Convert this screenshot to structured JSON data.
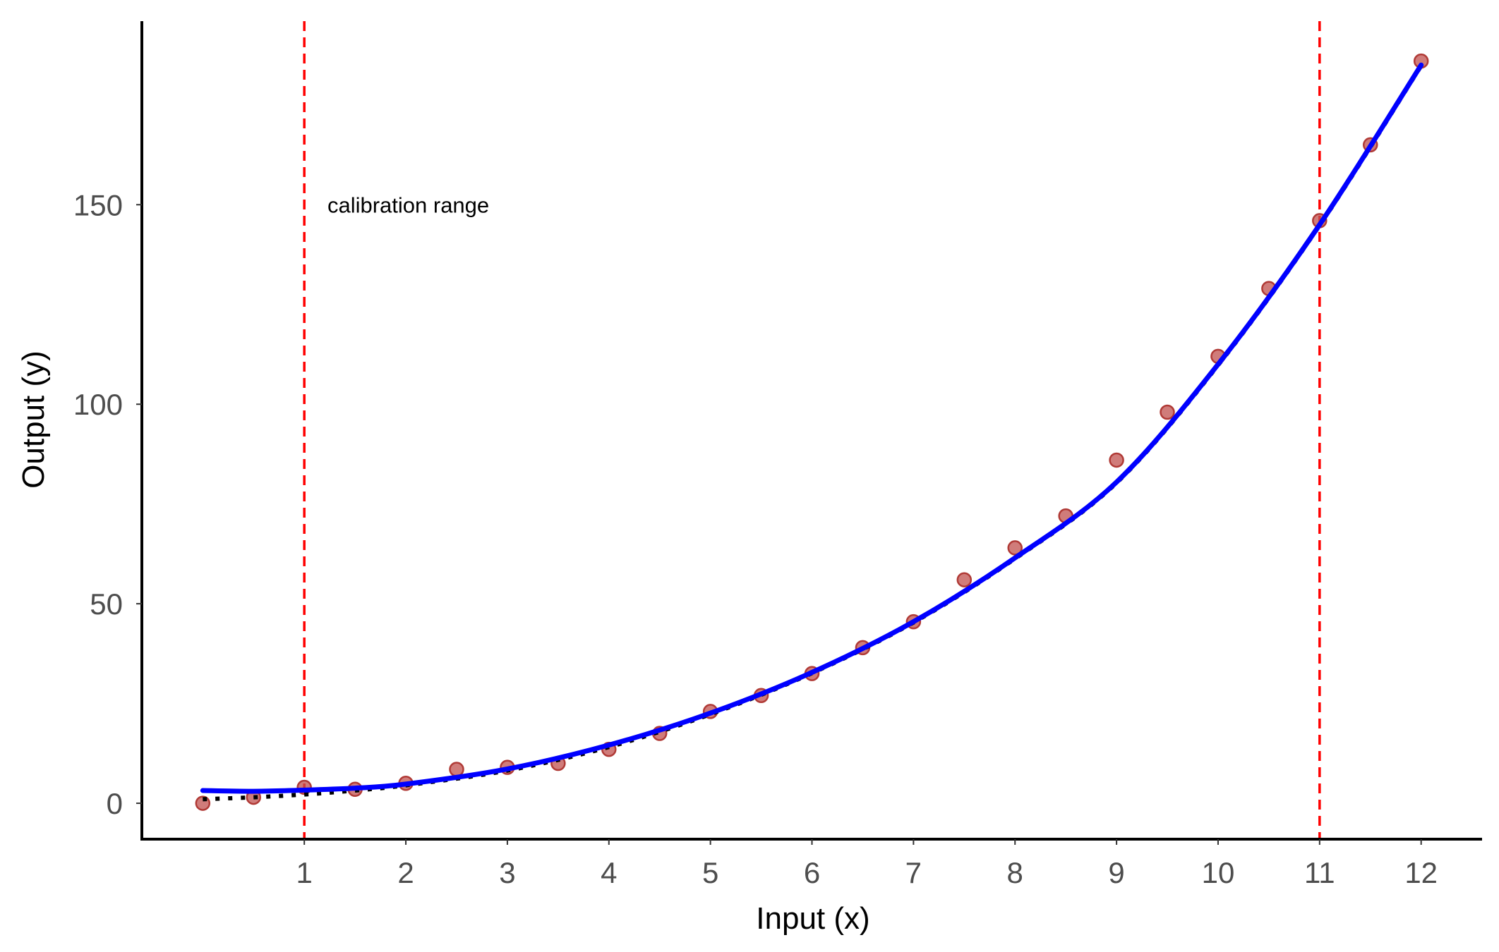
{
  "chart_data": {
    "type": "scatter",
    "title": "",
    "xlabel": "Input (x)",
    "ylabel": "Output (y)",
    "xlim": [
      -0.6,
      12.6
    ],
    "ylim": [
      -9,
      196
    ],
    "x_ticks": [
      1,
      2,
      3,
      4,
      5,
      6,
      7,
      8,
      9,
      10,
      11,
      12
    ],
    "y_ticks": [
      0,
      50,
      100,
      150
    ],
    "grid": false,
    "legend": "none",
    "points": {
      "color": "#c0504d",
      "x": [
        0,
        0.5,
        1,
        1.5,
        2,
        2.5,
        3,
        3.5,
        4,
        4.5,
        5,
        5.5,
        6,
        6.5,
        7,
        7.5,
        8,
        8.5,
        9,
        9.5,
        10,
        10.5,
        11,
        11.5,
        12
      ],
      "y": [
        0,
        1.5,
        4,
        3.5,
        5,
        8.5,
        9,
        10,
        13.5,
        17.5,
        23,
        27,
        32.5,
        39,
        45.5,
        56,
        64,
        72,
        86,
        98,
        112,
        129,
        146,
        165,
        186
      ]
    },
    "fitted_curve": {
      "color": "#0000ff",
      "x": [
        0,
        0.5,
        1,
        1.5,
        2,
        3,
        4,
        5,
        6,
        7,
        8,
        9,
        10,
        11,
        12
      ],
      "y": [
        3.2,
        3,
        3.3,
        3.8,
        4.8,
        8.6,
        14.6,
        22.6,
        32.8,
        45.5,
        61.5,
        80.5,
        110,
        145,
        185
      ]
    },
    "dotted_curve": {
      "color": "#000000",
      "x": [
        0,
        0.5,
        1,
        1.5,
        2,
        3,
        4,
        5,
        6,
        7,
        8,
        9,
        10,
        11,
        12
      ],
      "y": [
        1,
        1.5,
        2.2,
        3.2,
        4.5,
        8.2,
        14.1,
        22.3,
        32.6,
        45.3,
        61.3,
        80.3,
        109.8,
        144.8,
        184.8
      ]
    },
    "vertical_lines": {
      "color": "#ff0000",
      "x": [
        1,
        11
      ]
    },
    "annotation": {
      "text": "calibration range",
      "x": 1.2,
      "y": 150
    }
  }
}
